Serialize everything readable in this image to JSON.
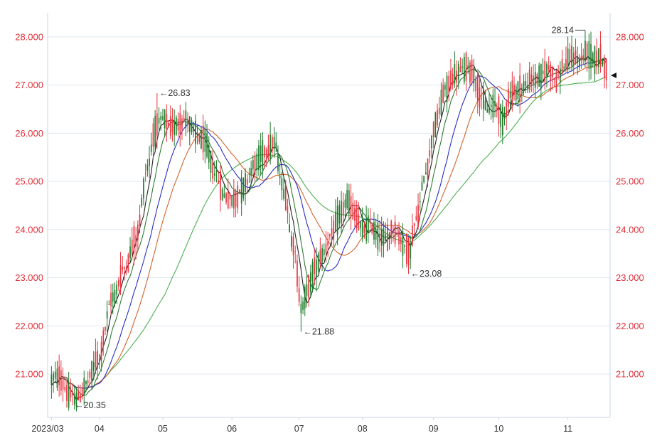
{
  "chart_data": {
    "type": "candlestick",
    "title": "",
    "y_ticks": [
      "21.000",
      "22.000",
      "23.000",
      "24.000",
      "25.000",
      "26.000",
      "27.000",
      "28.000"
    ],
    "y_tick_values": [
      21,
      22,
      23,
      24,
      25,
      26,
      27,
      28
    ],
    "ylim": [
      20.1,
      28.5
    ],
    "x_labels": [
      "2023/03",
      "04",
      "05",
      "06",
      "07",
      "08",
      "09",
      "10",
      "11"
    ],
    "x_label_index": [
      0,
      25,
      58,
      94,
      129,
      162,
      199,
      233,
      269
    ],
    "n_bars": 290,
    "grid": true,
    "colors": {
      "up": "#e8343f",
      "down": "#1d7a2a",
      "ma5": "#222222",
      "ma10": "#2e7d32",
      "ma20": "#2a2ec0",
      "ma30": "#d2642c",
      "ma60": "#4caf50",
      "grid": "#dfe6f2",
      "axis": "#c8d4e8",
      "tick_text": "#e0303a"
    },
    "anchors": [
      [
        0,
        20.9
      ],
      [
        3,
        20.95
      ],
      [
        10,
        20.55
      ],
      [
        14,
        20.5
      ],
      [
        18,
        20.8
      ],
      [
        24,
        21.3
      ],
      [
        32,
        22.6
      ],
      [
        38,
        23.2
      ],
      [
        44,
        23.8
      ],
      [
        50,
        25.3
      ],
      [
        54,
        26.1
      ],
      [
        58,
        26.3
      ],
      [
        62,
        26.1
      ],
      [
        66,
        26.2
      ],
      [
        70,
        26.3
      ],
      [
        75,
        26.0
      ],
      [
        80,
        25.8
      ],
      [
        85,
        25.2
      ],
      [
        90,
        24.7
      ],
      [
        95,
        24.6
      ],
      [
        100,
        24.9
      ],
      [
        105,
        25.3
      ],
      [
        110,
        25.6
      ],
      [
        116,
        25.8
      ],
      [
        121,
        24.8
      ],
      [
        126,
        23.7
      ],
      [
        130,
        22.4
      ],
      [
        133,
        22.7
      ],
      [
        137,
        23.2
      ],
      [
        141,
        23.5
      ],
      [
        146,
        23.9
      ],
      [
        150,
        24.3
      ],
      [
        154,
        24.6
      ],
      [
        158,
        24.3
      ],
      [
        162,
        24.0
      ],
      [
        166,
        24.1
      ],
      [
        170,
        23.9
      ],
      [
        174,
        23.8
      ],
      [
        178,
        24.0
      ],
      [
        182,
        23.8
      ],
      [
        186,
        23.5
      ],
      [
        190,
        24.2
      ],
      [
        195,
        25.2
      ],
      [
        200,
        26.2
      ],
      [
        205,
        26.9
      ],
      [
        210,
        27.2
      ],
      [
        215,
        27.35
      ],
      [
        219,
        27.3
      ],
      [
        223,
        26.8
      ],
      [
        227,
        26.5
      ],
      [
        231,
        26.6
      ],
      [
        235,
        26.3
      ],
      [
        239,
        26.8
      ],
      [
        243,
        26.9
      ],
      [
        247,
        27.0
      ],
      [
        251,
        27.1
      ],
      [
        255,
        27.2
      ],
      [
        259,
        27.35
      ],
      [
        263,
        27.1
      ],
      [
        267,
        27.4
      ],
      [
        271,
        27.6
      ],
      [
        275,
        27.5
      ],
      [
        279,
        27.7
      ],
      [
        283,
        27.55
      ],
      [
        286,
        27.6
      ],
      [
        289,
        27.3
      ]
    ],
    "extremes": [
      {
        "label": "←20.35",
        "index": 11,
        "value": 20.35,
        "pos": "low"
      },
      {
        "label": "←26.83",
        "index": 55,
        "value": 26.83,
        "pos": "high"
      },
      {
        "label": "←21.88",
        "index": 130,
        "value": 21.88,
        "pos": "low"
      },
      {
        "label": "←23.08",
        "index": 186,
        "value": 23.08,
        "pos": "low"
      },
      {
        "label": "28.14",
        "index": 278,
        "value": 28.14,
        "pos": "high-left"
      }
    ],
    "last_price_marker": 27.2
  }
}
